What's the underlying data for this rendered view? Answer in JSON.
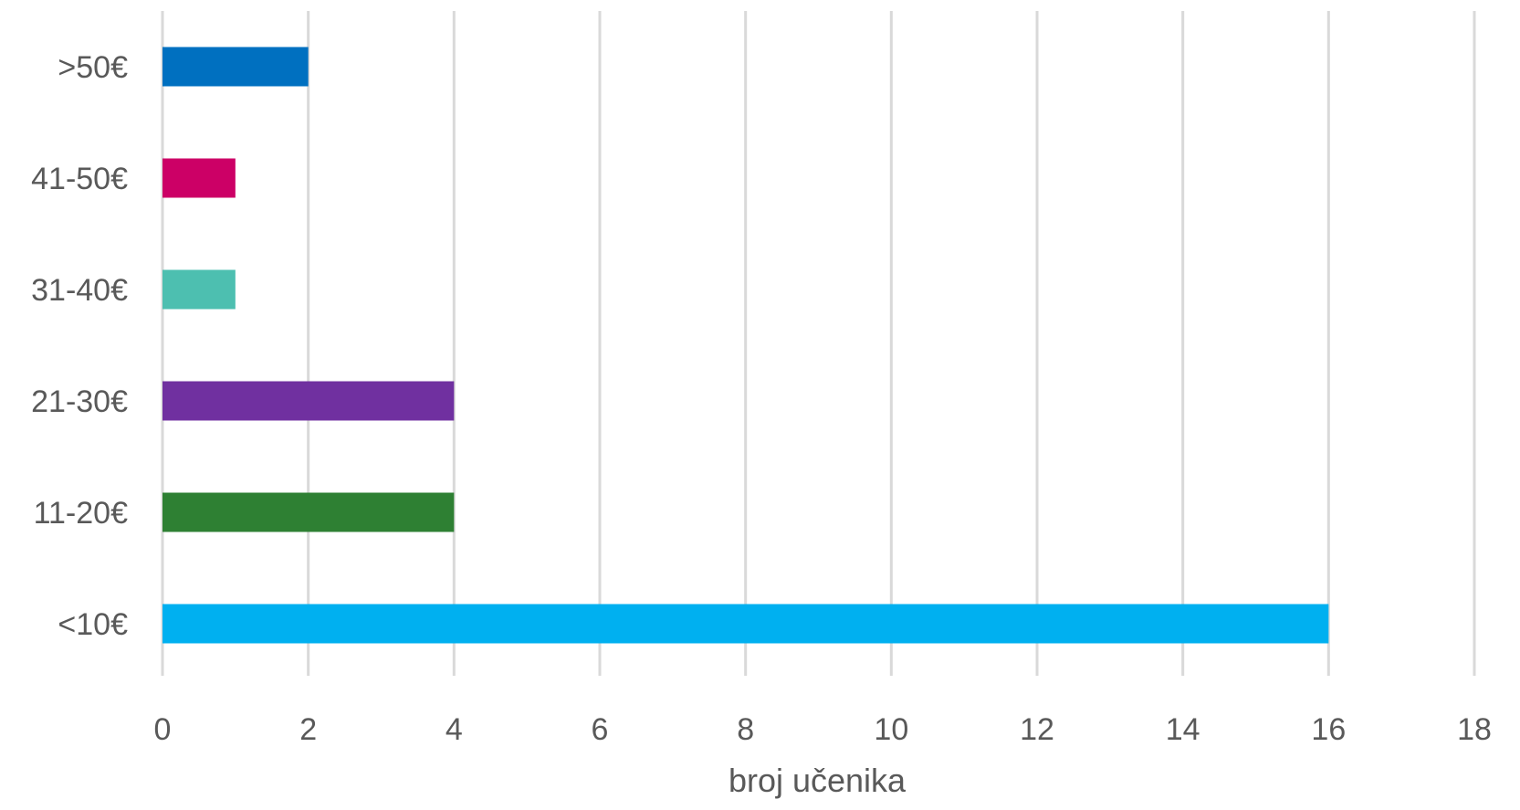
{
  "chart_data": {
    "type": "bar",
    "orientation": "horizontal",
    "categories": [
      "<10€",
      "11-20€",
      "21-30€",
      "31-40€",
      "41-50€",
      ">50€"
    ],
    "values": [
      16,
      4,
      4,
      1,
      1,
      2
    ],
    "colors": [
      "#00B0F0",
      "#2E8033",
      "#7030A0",
      "#4DBFB0",
      "#CC0066",
      "#0070C0"
    ],
    "xlabel": "broj učenika",
    "ylabel": "",
    "xlim": [
      0,
      18
    ],
    "x_ticks": [
      0,
      2,
      4,
      6,
      8,
      10,
      12,
      14,
      16,
      18
    ],
    "grid": "vertical",
    "gridline_color": "#D9D9D9",
    "legend": "none"
  }
}
